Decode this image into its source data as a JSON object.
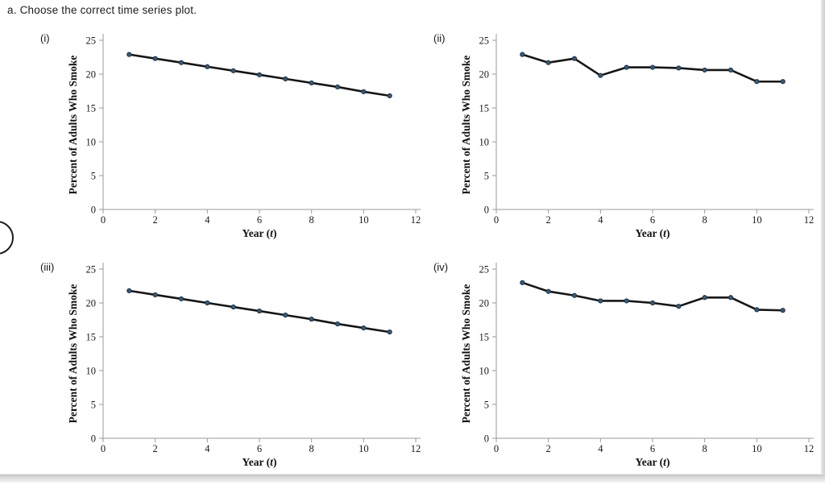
{
  "page": {
    "title": "a. Choose the correct time series plot."
  },
  "colors": {
    "line": "#161616",
    "marker_fill": "#3d5a74",
    "marker_edge": "#1b2f42",
    "axis": "#9a9a9a"
  },
  "chart_data": [
    {
      "id": "i",
      "label": "(i)",
      "type": "line",
      "x": [
        1,
        2,
        3,
        4,
        5,
        6,
        7,
        8,
        9,
        10,
        11
      ],
      "values": [
        22.9,
        22.3,
        21.7,
        21.1,
        20.5,
        19.9,
        19.3,
        18.7,
        18.1,
        17.4,
        16.8
      ],
      "xlabel": "Year (t)",
      "ylabel": "Percent of Adults Who Smoke",
      "xlim": [
        0,
        12
      ],
      "ylim": [
        0,
        25
      ],
      "xticks": [
        0,
        2,
        4,
        6,
        8,
        10,
        12
      ],
      "yticks": [
        0,
        5,
        10,
        15,
        20,
        25
      ],
      "grid": false,
      "legend": "none",
      "line_color": "#161616",
      "marker_color": "#3d5a74",
      "marker_edge": "#1b2f42"
    },
    {
      "id": "ii",
      "label": "(ii)",
      "type": "line",
      "x": [
        1,
        2,
        3,
        4,
        5,
        6,
        7,
        8,
        9,
        10,
        11
      ],
      "values": [
        22.9,
        21.7,
        22.3,
        19.8,
        21.0,
        21.0,
        20.9,
        20.6,
        20.6,
        18.9,
        18.9
      ],
      "xlabel": "Year (t)",
      "ylabel": "Percent of Adults Who Smoke",
      "xlim": [
        0,
        12
      ],
      "ylim": [
        0,
        25
      ],
      "xticks": [
        0,
        2,
        4,
        6,
        8,
        10,
        12
      ],
      "yticks": [
        0,
        5,
        10,
        15,
        20,
        25
      ],
      "grid": false,
      "legend": "none",
      "line_color": "#161616",
      "marker_color": "#3d5a74",
      "marker_edge": "#1b2f42"
    },
    {
      "id": "iii",
      "label": "(iii)",
      "type": "line",
      "x": [
        1,
        2,
        3,
        4,
        5,
        6,
        7,
        8,
        9,
        10,
        11
      ],
      "values": [
        21.8,
        21.2,
        20.6,
        20.0,
        19.4,
        18.8,
        18.2,
        17.6,
        16.9,
        16.3,
        15.7
      ],
      "xlabel": "Year (t)",
      "ylabel": "Percent of Adults Who Smoke",
      "xlim": [
        0,
        12
      ],
      "ylim": [
        0,
        25
      ],
      "xticks": [
        0,
        2,
        4,
        6,
        8,
        10,
        12
      ],
      "yticks": [
        0,
        5,
        10,
        15,
        20,
        25
      ],
      "grid": false,
      "legend": "none",
      "line_color": "#161616",
      "marker_color": "#3d5a74",
      "marker_edge": "#1b2f42"
    },
    {
      "id": "iv",
      "label": "(iv)",
      "type": "line",
      "x": [
        1,
        2,
        3,
        4,
        5,
        6,
        7,
        8,
        9,
        10,
        11
      ],
      "values": [
        23.0,
        21.7,
        21.1,
        20.3,
        20.3,
        20.0,
        19.5,
        20.8,
        20.8,
        19.0,
        18.9
      ],
      "xlabel": "Year (t)",
      "ylabel": "Percent of Adults Who Smoke",
      "xlim": [
        0,
        12
      ],
      "ylim": [
        0,
        25
      ],
      "xticks": [
        0,
        2,
        4,
        6,
        8,
        10,
        12
      ],
      "yticks": [
        0,
        5,
        10,
        15,
        20,
        25
      ],
      "grid": false,
      "legend": "none",
      "line_color": "#161616",
      "marker_color": "#3d5a74",
      "marker_edge": "#1b2f42"
    }
  ]
}
